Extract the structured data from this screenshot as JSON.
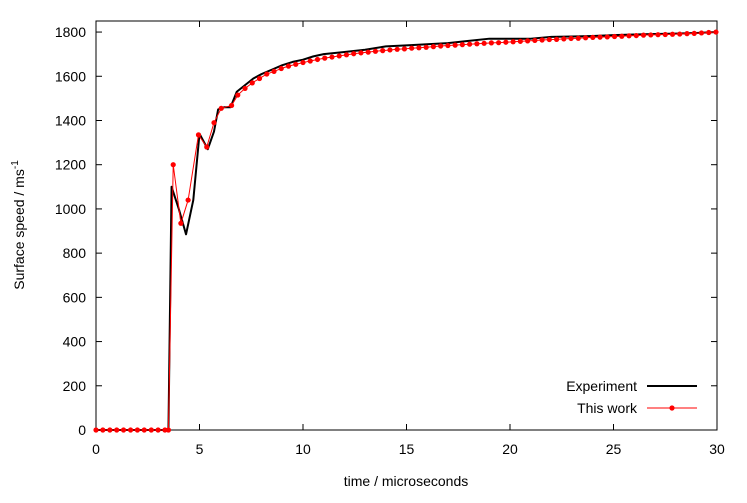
{
  "chart_data": {
    "type": "line",
    "title": "",
    "xlabel": "time / microseconds",
    "ylabel_main": "Surface speed / ms",
    "ylabel_sup": "-1",
    "xlim": [
      0,
      30
    ],
    "ylim": [
      0,
      1850
    ],
    "x_ticks": [
      0,
      5,
      10,
      15,
      20,
      25,
      30
    ],
    "y_ticks": [
      0,
      200,
      400,
      600,
      800,
      1000,
      1200,
      1400,
      1600,
      1800
    ],
    "x_tick_labels": [
      "0",
      "5",
      "10",
      "15",
      "20",
      "25",
      "30"
    ],
    "y_tick_labels": [
      "0",
      "200",
      "400",
      "600",
      "800",
      "1000",
      "1200",
      "1400",
      "1600",
      "1800"
    ],
    "legend_position": "bottom-right",
    "grid": false,
    "series": [
      {
        "name": "Experiment",
        "color": "#000000",
        "marker": "none",
        "x": [
          0,
          1,
          2,
          3,
          3.4,
          3.5,
          3.65,
          4.0,
          4.35,
          4.7,
          5.0,
          5.4,
          5.7,
          5.9,
          6.2,
          6.5,
          6.8,
          7.2,
          7.6,
          8.0,
          8.5,
          9.0,
          9.5,
          10.0,
          10.5,
          11.0,
          12.0,
          13.0,
          14.0,
          15.0,
          16.0,
          17.0,
          18.0,
          19.0,
          20.0,
          21.0,
          22.0,
          23.0,
          24.0,
          25.0,
          26.0,
          27.0,
          28.0,
          29.0,
          30.0
        ],
        "y": [
          0,
          0,
          0,
          0,
          0,
          0,
          1100,
          1000,
          885,
          1040,
          1340,
          1270,
          1350,
          1450,
          1460,
          1460,
          1530,
          1560,
          1590,
          1610,
          1630,
          1650,
          1665,
          1675,
          1690,
          1700,
          1710,
          1720,
          1735,
          1740,
          1745,
          1750,
          1760,
          1770,
          1770,
          1770,
          1778,
          1780,
          1782,
          1786,
          1789,
          1791,
          1793,
          1796,
          1800
        ]
      },
      {
        "name": "This work",
        "color": "#ff0000",
        "marker": "circle",
        "x": [
          0,
          0.33,
          0.67,
          1.0,
          1.33,
          1.67,
          2.0,
          2.33,
          2.67,
          3.0,
          3.33,
          3.5,
          3.73,
          4.1,
          4.45,
          4.95,
          5.35,
          5.7,
          6.05,
          6.55,
          6.85,
          7.2,
          7.55,
          7.9,
          8.25,
          8.6,
          8.95,
          9.3,
          9.65,
          10.0,
          10.35,
          10.7,
          11.05,
          11.4,
          11.75,
          12.1,
          12.45,
          12.8,
          13.15,
          13.5,
          13.85,
          14.2,
          14.55,
          14.9,
          15.25,
          15.6,
          15.95,
          16.3,
          16.65,
          17.0,
          17.35,
          17.7,
          18.05,
          18.4,
          18.75,
          19.1,
          19.45,
          19.8,
          20.15,
          20.5,
          20.85,
          21.2,
          21.55,
          21.9,
          22.25,
          22.6,
          22.95,
          23.3,
          23.65,
          24.0,
          24.35,
          24.7,
          25.05,
          25.4,
          25.75,
          26.1,
          26.45,
          26.8,
          27.15,
          27.5,
          27.85,
          28.2,
          28.55,
          28.9,
          29.25,
          29.6,
          29.95
        ],
        "y": [
          0,
          0,
          0,
          0,
          0,
          0,
          0,
          0,
          0,
          0,
          0,
          0,
          1200,
          935,
          1040,
          1335,
          1280,
          1390,
          1455,
          1468,
          1515,
          1545,
          1570,
          1590,
          1610,
          1622,
          1635,
          1646,
          1654,
          1662,
          1669,
          1676,
          1682,
          1687,
          1692,
          1697,
          1702,
          1706,
          1709,
          1713,
          1716,
          1719,
          1722,
          1724,
          1727,
          1729,
          1731,
          1734,
          1737,
          1739,
          1741,
          1743,
          1745,
          1747,
          1749,
          1751,
          1752,
          1754,
          1756,
          1758,
          1760,
          1762,
          1764,
          1766,
          1767,
          1769,
          1771,
          1772,
          1774,
          1776,
          1777,
          1778,
          1780,
          1781,
          1783,
          1784,
          1786,
          1787,
          1788,
          1789,
          1790,
          1791,
          1793,
          1794,
          1796,
          1798,
          1800
        ]
      }
    ]
  }
}
